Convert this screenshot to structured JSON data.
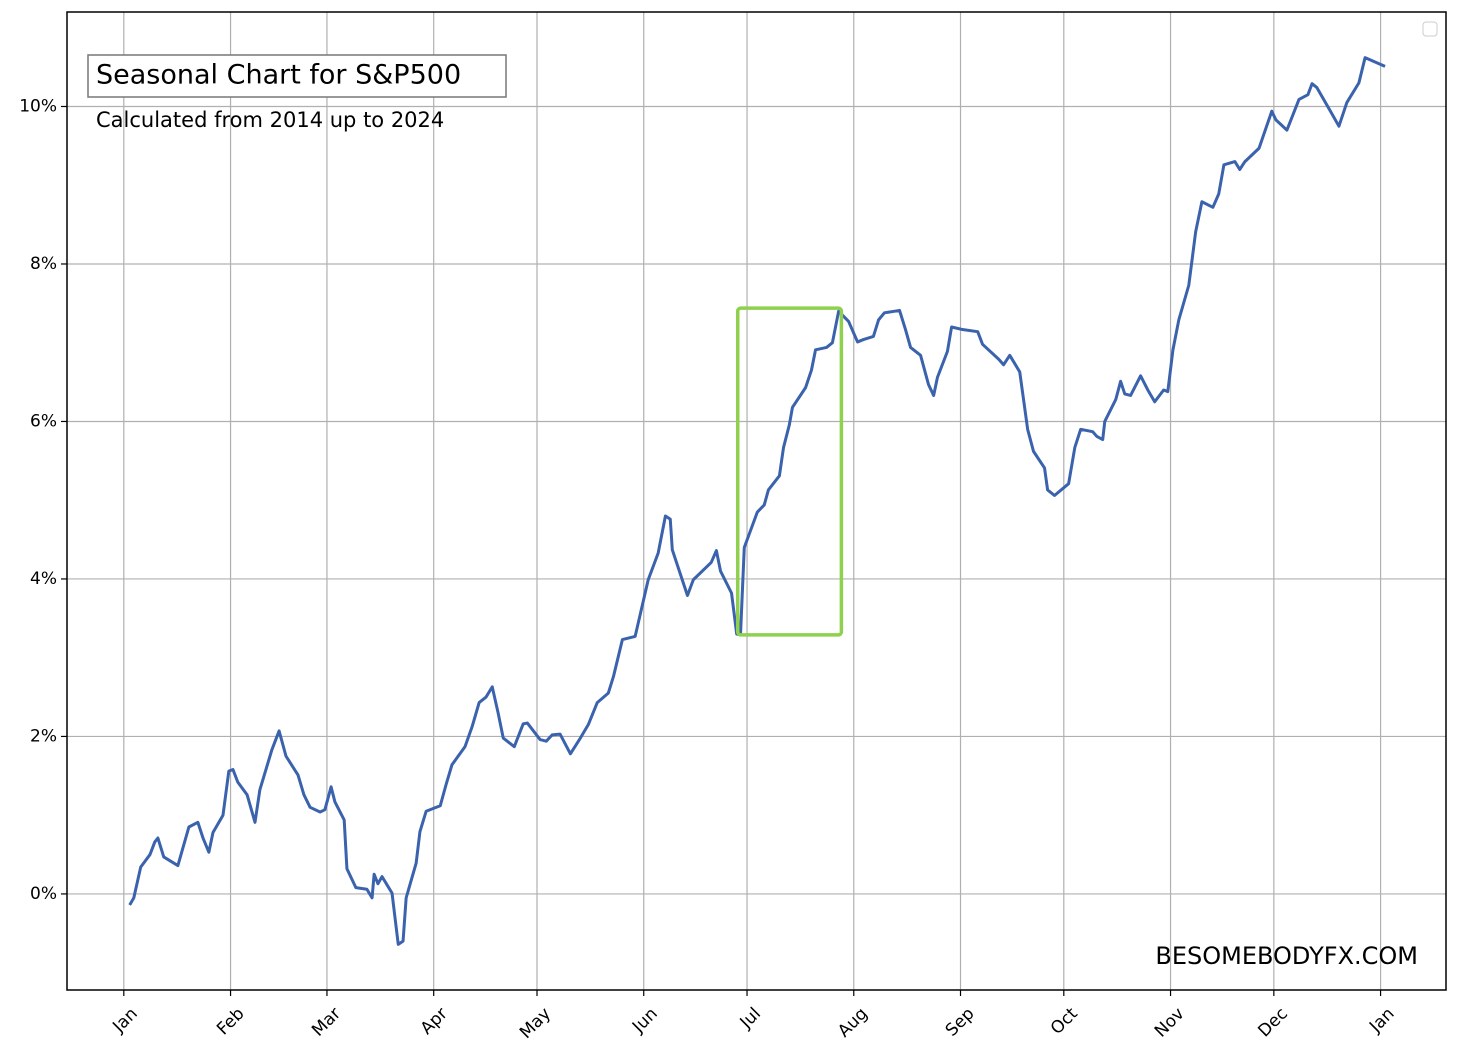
{
  "chart_data": {
    "type": "line",
    "title": "Seasonal Chart for S&P500",
    "subtitle": "Calculated from 2014 up to 2024",
    "watermark": "BESOMEBODYFX.COM",
    "grid": true,
    "xlim": [
      -16.5,
      384
    ],
    "ylim": [
      -1.22,
      11.2
    ],
    "xticks": [
      {
        "value": 0,
        "label": "Jan"
      },
      {
        "value": 31,
        "label": "Feb"
      },
      {
        "value": 59,
        "label": "Mar"
      },
      {
        "value": 90,
        "label": "Apr"
      },
      {
        "value": 120,
        "label": "May"
      },
      {
        "value": 151,
        "label": "Jun"
      },
      {
        "value": 181,
        "label": "Jul"
      },
      {
        "value": 212,
        "label": "Aug"
      },
      {
        "value": 243,
        "label": "Sep"
      },
      {
        "value": 273,
        "label": "Oct"
      },
      {
        "value": 304,
        "label": "Nov"
      },
      {
        "value": 334,
        "label": "Dec"
      },
      {
        "value": 365,
        "label": "Jan"
      }
    ],
    "yticks": [
      {
        "value": 0,
        "label": "0%"
      },
      {
        "value": 2,
        "label": "2%"
      },
      {
        "value": 4,
        "label": "4%"
      },
      {
        "value": 6,
        "label": "6%"
      },
      {
        "value": 8,
        "label": "8%"
      },
      {
        "value": 10,
        "label": "10%"
      }
    ],
    "highlight": {
      "x": [
        178.3,
        208.4
      ],
      "y": [
        3.29,
        7.44
      ],
      "color": "#8fd14f"
    },
    "x": [
      1.7,
      2.9,
      4.9,
      7.6,
      9.0,
      9.9,
      11.6,
      15.7,
      18.9,
      21.5,
      23.0,
      24.7,
      25.9,
      28.8,
      30.5,
      31.7,
      33.1,
      35.8,
      38.1,
      39.5,
      43.0,
      45.1,
      47.1,
      50.6,
      52.3,
      54.1,
      57.0,
      58.4,
      60.2,
      61.3,
      64.0,
      64.8,
      67.4,
      70.6,
      72.1,
      72.7,
      73.8,
      75.0,
      77.9,
      79.7,
      81.1,
      82.0,
      84.9,
      86.0,
      87.8,
      91.9,
      93.6,
      95.3,
      99.1,
      101.2,
      103.2,
      105.2,
      107.0,
      108.7,
      110.2,
      113.4,
      116.0,
      117.2,
      120.9,
      122.7,
      124.4,
      126.7,
      129.7,
      132.6,
      134.9,
      137.5,
      140.7,
      142.2,
      144.8,
      148.5,
      152.3,
      155.2,
      157.3,
      158.7,
      159.3,
      163.7,
      165.4,
      170.6,
      172.1,
      173.3,
      176.5,
      178.0,
      179.1,
      180.2,
      184.0,
      186.0,
      187.2,
      190.4,
      191.6,
      193.3,
      194.2,
      198.0,
      199.7,
      200.9,
      204.1,
      205.8,
      207.6,
      210.5,
      213.1,
      214.8,
      217.7,
      219.2,
      220.9,
      225.3,
      227.0,
      228.5,
      231.4,
      233.7,
      235.2,
      236.3,
      239.2,
      240.4,
      243.3,
      248.0,
      249.4,
      254.1,
      255.5,
      257.3,
      260.2,
      262.5,
      264.2,
      267.4,
      268.3,
      270.3,
      274.4,
      276.2,
      277.9,
      281.4,
      282.6,
      284.3,
      284.9,
      288.1,
      289.5,
      290.7,
      292.4,
      295.3,
      297.4,
      299.4,
      302.0,
      303.2,
      304.7,
      306.4,
      309.3,
      311.3,
      313.1,
      316.3,
      318.0,
      319.5,
      322.7,
      324.1,
      325.6,
      329.7,
      333.4,
      334.6,
      337.8,
      341.3,
      343.9,
      345.1,
      346.5,
      350.3,
      352.9,
      355.2,
      358.7,
      360.5,
      366.3
    ],
    "series": [
      {
        "name": "S&P500",
        "color": "#3a62ad",
        "values": [
          -0.14,
          -0.05,
          0.34,
          0.5,
          0.66,
          0.71,
          0.47,
          0.36,
          0.85,
          0.91,
          0.71,
          0.53,
          0.78,
          1.0,
          1.56,
          1.58,
          1.42,
          1.26,
          0.91,
          1.32,
          1.83,
          2.07,
          1.75,
          1.51,
          1.26,
          1.1,
          1.04,
          1.07,
          1.36,
          1.17,
          0.94,
          0.32,
          0.08,
          0.06,
          -0.05,
          0.25,
          0.13,
          0.22,
          0.01,
          -0.64,
          -0.6,
          -0.05,
          0.39,
          0.79,
          1.05,
          1.12,
          1.39,
          1.64,
          1.87,
          2.13,
          2.43,
          2.5,
          2.63,
          2.3,
          1.98,
          1.87,
          2.16,
          2.17,
          1.96,
          1.94,
          2.02,
          2.03,
          1.78,
          1.98,
          2.15,
          2.43,
          2.55,
          2.76,
          3.23,
          3.27,
          3.99,
          4.33,
          4.8,
          4.76,
          4.37,
          3.79,
          3.99,
          4.21,
          4.36,
          4.1,
          3.82,
          3.3,
          3.29,
          4.4,
          4.85,
          4.94,
          5.13,
          5.31,
          5.67,
          5.96,
          6.18,
          6.43,
          6.65,
          6.91,
          6.94,
          7.0,
          7.4,
          7.27,
          7.01,
          7.04,
          7.08,
          7.29,
          7.38,
          7.41,
          7.17,
          6.94,
          6.84,
          6.47,
          6.33,
          6.56,
          6.89,
          7.2,
          7.17,
          7.14,
          6.98,
          6.79,
          6.72,
          6.84,
          6.63,
          5.9,
          5.62,
          5.41,
          5.13,
          5.06,
          5.21,
          5.67,
          5.9,
          5.87,
          5.81,
          5.77,
          6.0,
          6.28,
          6.51,
          6.35,
          6.33,
          6.58,
          6.4,
          6.25,
          6.4,
          6.38,
          6.91,
          7.29,
          7.73,
          8.41,
          8.79,
          8.72,
          8.89,
          9.26,
          9.3,
          9.2,
          9.3,
          9.47,
          9.94,
          9.83,
          9.7,
          10.09,
          10.15,
          10.29,
          10.24,
          9.95,
          9.75,
          10.05,
          10.3,
          10.62,
          10.51
        ]
      }
    ]
  }
}
